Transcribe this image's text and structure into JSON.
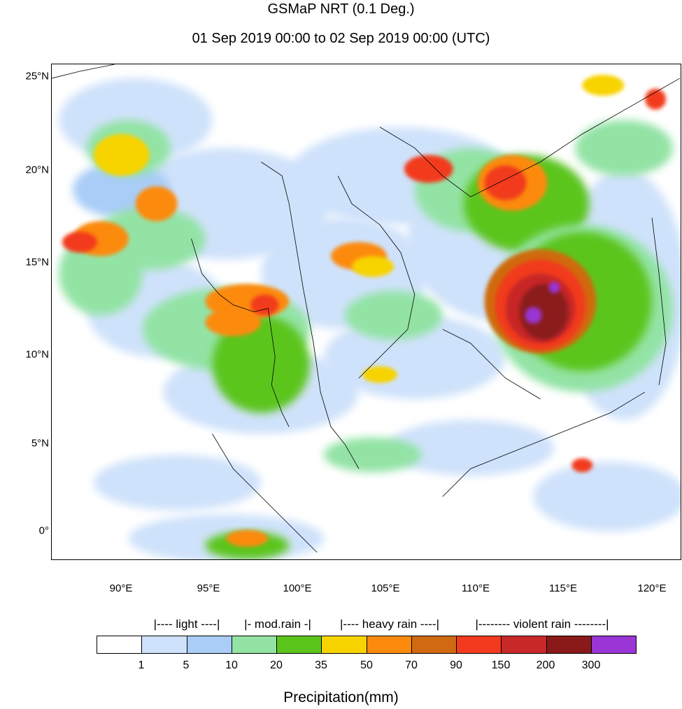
{
  "title": "GSMaP NRT (0.1 Deg.)",
  "subtitle": "01 Sep 2019 00:00 to 02 Sep 2019 00:00 (UTC)",
  "lat_ticks": [
    "25°N",
    "20°N",
    "15°N",
    "10°N",
    "5°N",
    "0°"
  ],
  "lon_ticks": [
    "90°E",
    "95°E",
    "100°E",
    "105°E",
    "110°E",
    "115°E",
    "120°E"
  ],
  "legend": {
    "categories": [
      "|---- light ----|",
      "|- mod.rain -|",
      "|---- heavy rain ----|",
      "|-------- violent rain --------|"
    ],
    "labels": [
      "1",
      "5",
      "10",
      "20",
      "35",
      "50",
      "70",
      "90",
      "150",
      "200",
      "300"
    ],
    "colors": [
      "#ffffff",
      "#cfe2fb",
      "#a9cdf7",
      "#93e3a5",
      "#5cc51c",
      "#f7d300",
      "#fc8a0c",
      "#d06a10",
      "#f23a1e",
      "#c82828",
      "#8a1a1a",
      "#9a35d6"
    ],
    "unit_label": "Precipitation(mm)"
  }
}
